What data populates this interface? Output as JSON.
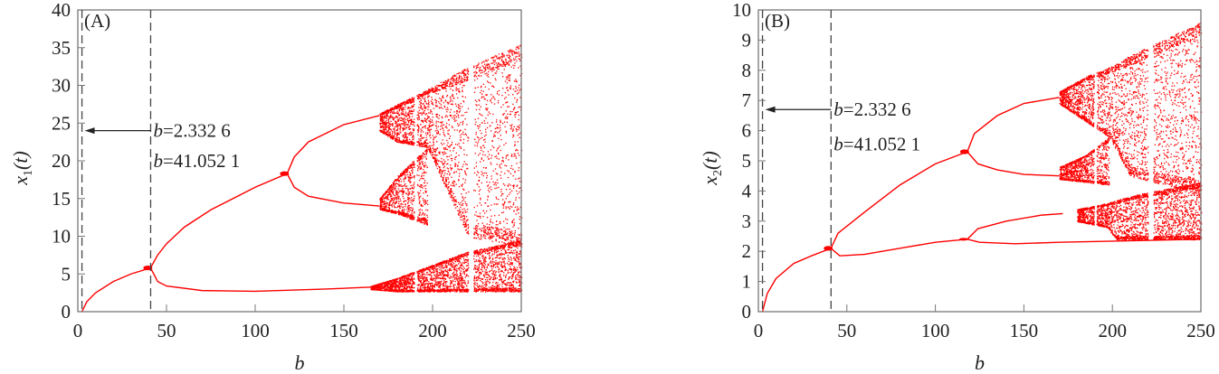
{
  "chart_data": [
    {
      "type": "scatter",
      "panel_label": "(A)",
      "xlabel": "b",
      "ylabel_main": "x",
      "ylabel_sub": "1",
      "ylabel_arg": "(t)",
      "xlim": [
        0,
        250
      ],
      "ylim": [
        0,
        40
      ],
      "xticks": [
        0,
        50,
        100,
        150,
        200,
        250
      ],
      "yticks": [
        0,
        5,
        10,
        15,
        20,
        25,
        30,
        35,
        40
      ],
      "color": "#ff0000",
      "vlines": [
        2.3326,
        41.0521
      ],
      "annotations": [
        {
          "italic": "b",
          "text": "=2.332 6",
          "y": 24
        },
        {
          "italic": "b",
          "text": "=41.052 1",
          "y": 20
        }
      ],
      "arrow_y": 24,
      "branches": [
        [
          [
            2.33,
            0
          ],
          [
            5,
            1.3
          ],
          [
            10,
            2.5
          ],
          [
            20,
            4
          ],
          [
            30,
            5
          ],
          [
            41,
            5.8
          ]
        ],
        [
          [
            41,
            5.8
          ],
          [
            45,
            7.5
          ],
          [
            50,
            9
          ],
          [
            60,
            11.2
          ],
          [
            75,
            13.5
          ],
          [
            100,
            16.5
          ],
          [
            118,
            18.3
          ]
        ],
        [
          [
            118,
            18.3
          ],
          [
            122,
            20.5
          ],
          [
            130,
            22.5
          ],
          [
            150,
            24.8
          ],
          [
            170,
            26
          ]
        ],
        [
          [
            118,
            18.3
          ],
          [
            122,
            16.5
          ],
          [
            130,
            15.3
          ],
          [
            150,
            14.4
          ],
          [
            170,
            14
          ]
        ],
        [
          [
            41,
            5.8
          ],
          [
            45,
            4
          ],
          [
            50,
            3.4
          ],
          [
            70,
            2.8
          ],
          [
            100,
            2.7
          ],
          [
            140,
            3
          ],
          [
            170,
            3.3
          ]
        ]
      ],
      "chaotic_bands": [
        [
          [
            170,
            24,
            26.3
          ],
          [
            180,
            22.5,
            27.5
          ],
          [
            197,
            21.8,
            29.5
          ],
          [
            220,
            10,
            32.5
          ],
          [
            250,
            8.5,
            35.5
          ]
        ],
        [
          [
            170,
            13.6,
            15
          ],
          [
            180,
            13,
            18
          ],
          [
            197,
            11.5,
            21.8
          ]
        ],
        [
          [
            165,
            3,
            3.4
          ],
          [
            180,
            2.7,
            4.5
          ],
          [
            220,
            2.7,
            8
          ],
          [
            250,
            2.7,
            9.5
          ]
        ]
      ],
      "windows": [
        [
          189.5,
          191
        ],
        [
          220,
          223
        ]
      ]
    },
    {
      "type": "scatter",
      "panel_label": "(B)",
      "xlabel": "b",
      "ylabel_main": "x",
      "ylabel_sub": "2",
      "ylabel_arg": "(t)",
      "xlim": [
        0,
        250
      ],
      "ylim": [
        0,
        10
      ],
      "xticks": [
        0,
        50,
        100,
        150,
        200,
        250
      ],
      "yticks": [
        0,
        1,
        2,
        3,
        4,
        5,
        6,
        7,
        8,
        9,
        10
      ],
      "color": "#ff0000",
      "vlines": [
        2.3326,
        41.0521
      ],
      "annotations": [
        {
          "italic": "b",
          "text": "=2.332 6",
          "y": 6.7
        },
        {
          "italic": "b",
          "text": "=41.052 1",
          "y": 5.55
        }
      ],
      "arrow_y": 6.7,
      "branches": [
        [
          [
            2.33,
            0
          ],
          [
            5,
            0.6
          ],
          [
            10,
            1.1
          ],
          [
            20,
            1.6
          ],
          [
            30,
            1.85
          ],
          [
            41,
            2.1
          ]
        ],
        [
          [
            41,
            2.1
          ],
          [
            45,
            2.6
          ],
          [
            60,
            3.3
          ],
          [
            80,
            4.2
          ],
          [
            100,
            4.9
          ],
          [
            118,
            5.3
          ]
        ],
        [
          [
            118,
            5.3
          ],
          [
            122,
            5.9
          ],
          [
            135,
            6.5
          ],
          [
            150,
            6.9
          ],
          [
            170,
            7.1
          ]
        ],
        [
          [
            118,
            5.3
          ],
          [
            124,
            4.9
          ],
          [
            135,
            4.7
          ],
          [
            150,
            4.55
          ],
          [
            170,
            4.5
          ]
        ],
        [
          [
            41,
            2.1
          ],
          [
            46,
            1.85
          ],
          [
            60,
            1.9
          ],
          [
            80,
            2.1
          ],
          [
            100,
            2.3
          ],
          [
            118,
            2.4
          ]
        ],
        [
          [
            118,
            2.4
          ],
          [
            124,
            2.75
          ],
          [
            140,
            3
          ],
          [
            160,
            3.2
          ],
          [
            172,
            3.25
          ]
        ],
        [
          [
            118,
            2.4
          ],
          [
            125,
            2.3
          ],
          [
            145,
            2.25
          ],
          [
            170,
            2.3
          ],
          [
            250,
            2.4
          ]
        ]
      ],
      "chaotic_bands": [
        [
          [
            170,
            6.9,
            7.3
          ],
          [
            185,
            6.3,
            7.8
          ],
          [
            198,
            5.8,
            8.1
          ],
          [
            210,
            4.5,
            8.5
          ],
          [
            250,
            3.9,
            9.6
          ]
        ],
        [
          [
            170,
            4.4,
            4.8
          ],
          [
            185,
            4.3,
            5.2
          ],
          [
            198,
            4.2,
            5.8
          ]
        ],
        [
          [
            180,
            3.0,
            3.4
          ],
          [
            197,
            2.8,
            3.6
          ],
          [
            202,
            2.4,
            3.7
          ],
          [
            215,
            2.4,
            3.9
          ],
          [
            250,
            2.4,
            4.3
          ]
        ]
      ],
      "windows": [
        [
          189.5,
          191
        ],
        [
          220,
          223
        ]
      ]
    }
  ]
}
